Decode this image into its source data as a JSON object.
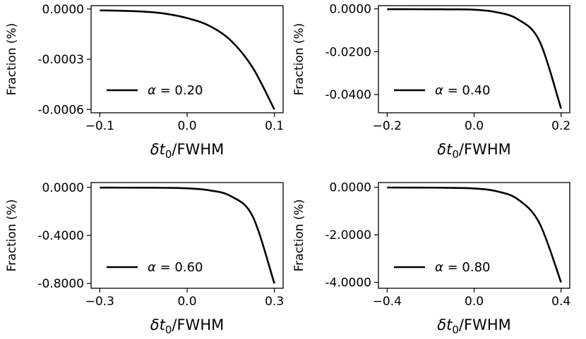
{
  "chart_data": [
    {
      "type": "line",
      "ylabel": "Fraction (%)",
      "xlabel_var": "δt",
      "xlabel_sub": "0",
      "xlabel_suffix": "/FWHM",
      "legend_symbol": "α",
      "legend_eq": " = ",
      "legend_value": "0.20",
      "legend_position": "lower-left",
      "xlim": [
        -0.11,
        0.11
      ],
      "ylim": [
        -0.00062,
        2e-05
      ],
      "xticks": [
        -0.1,
        0.0,
        0.1
      ],
      "xtick_labels": [
        "−0.1",
        "0.0",
        "0.1"
      ],
      "yticks": [
        0,
        -0.0003,
        -0.0006
      ],
      "ytick_labels": [
        "0.0000",
        "-0.0003",
        "-0.0006"
      ],
      "grid": false,
      "series": [
        {
          "color": "#000000",
          "x": [
            -0.1,
            -0.075,
            -0.05,
            -0.025,
            0.0,
            0.025,
            0.05,
            0.075,
            0.1
          ],
          "y": [
            -8.5e-06,
            -1.07e-05,
            -1.56e-05,
            -2.81e-05,
            -5.44e-05,
            -9.94e-05,
            -0.000188,
            -0.000349,
            -0.0006
          ]
        }
      ]
    },
    {
      "type": "line",
      "ylabel": "Fraction (%)",
      "xlabel_var": "δt",
      "xlabel_sub": "0",
      "xlabel_suffix": "/FWHM",
      "legend_symbol": "α",
      "legend_eq": " = ",
      "legend_value": "0.40",
      "legend_position": "lower-left",
      "xlim": [
        -0.22,
        0.22
      ],
      "ylim": [
        -0.0485,
        0.0015
      ],
      "xticks": [
        -0.2,
        0.0,
        0.2
      ],
      "xtick_labels": [
        "−0.2",
        "0.0",
        "0.2"
      ],
      "yticks": [
        0,
        -0.02,
        -0.04
      ],
      "ytick_labels": [
        "0.0000",
        "-0.0200",
        "-0.0400"
      ],
      "grid": false,
      "series": [
        {
          "color": "#000000",
          "x": [
            -0.2,
            -0.15,
            -0.1,
            -0.05,
            0.0,
            0.05,
            0.1,
            0.15,
            0.2
          ],
          "y": [
            -0.00015,
            -0.00017,
            -0.0002,
            -0.00025,
            -0.0004,
            -0.0015,
            -0.0048,
            -0.0149,
            -0.0465
          ]
        }
      ]
    },
    {
      "type": "line",
      "ylabel": "Fraction (%)",
      "xlabel_var": "δt",
      "xlabel_sub": "0",
      "xlabel_suffix": "/FWHM",
      "legend_symbol": "α",
      "legend_eq": " = ",
      "legend_value": "0.60",
      "legend_position": "lower-left",
      "xlim": [
        -0.33,
        0.33
      ],
      "ylim": [
        -0.84,
        0.04
      ],
      "xticks": [
        -0.3,
        0.0,
        0.3
      ],
      "xtick_labels": [
        "−0.3",
        "0.0",
        "0.3"
      ],
      "yticks": [
        0,
        -0.4,
        -0.8
      ],
      "ytick_labels": [
        "0.0000",
        "-0.4000",
        "-0.8000"
      ],
      "grid": false,
      "series": [
        {
          "color": "#000000",
          "x": [
            -0.3,
            -0.225,
            -0.15,
            -0.075,
            0.0,
            0.075,
            0.15,
            0.225,
            0.3
          ],
          "y": [
            -0.002,
            -0.0025,
            -0.003,
            -0.004,
            -0.008,
            -0.024,
            -0.073,
            -0.24,
            -0.8
          ]
        }
      ]
    },
    {
      "type": "line",
      "ylabel": "Fraction (%)",
      "xlabel_var": "δt",
      "xlabel_sub": "0",
      "xlabel_suffix": "/FWHM",
      "legend_symbol": "α",
      "legend_eq": " = ",
      "legend_value": "0.80",
      "legend_position": "lower-left",
      "xlim": [
        -0.44,
        0.44
      ],
      "ylim": [
        -4.25,
        0.2
      ],
      "xticks": [
        -0.4,
        0.0,
        0.4
      ],
      "xtick_labels": [
        "−0.4",
        "0.0",
        "0.4"
      ],
      "yticks": [
        0,
        -2,
        -4
      ],
      "ytick_labels": [
        "0.0000",
        "-2.0000",
        "-4.0000"
      ],
      "grid": false,
      "series": [
        {
          "color": "#000000",
          "x": [
            -0.4,
            -0.3,
            -0.2,
            -0.1,
            0.0,
            0.1,
            0.2,
            0.3,
            0.4
          ],
          "y": [
            -0.01,
            -0.012,
            -0.015,
            -0.025,
            -0.05,
            -0.16,
            -0.5,
            -1.5,
            -4.0
          ]
        }
      ]
    }
  ]
}
